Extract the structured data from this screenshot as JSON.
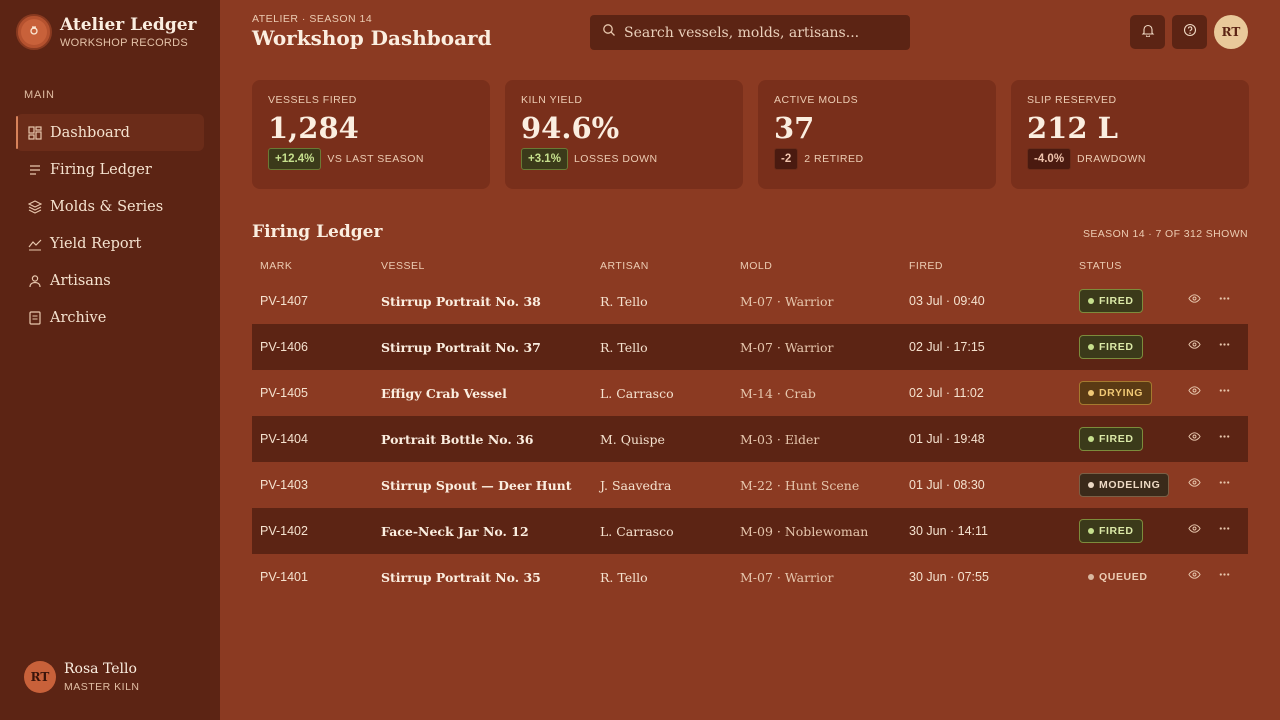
{
  "brand": {
    "title": "Atelier Ledger",
    "subtitle": "WORKSHOP RECORDS"
  },
  "sidebar": {
    "section_label": "MAIN",
    "items": [
      {
        "label": "Dashboard",
        "icon": "grid-icon",
        "active": true
      },
      {
        "label": "Firing Ledger",
        "icon": "list-icon"
      },
      {
        "label": "Molds & Series",
        "icon": "layers-icon"
      },
      {
        "label": "Yield Report",
        "icon": "trend-icon"
      },
      {
        "label": "Artisans",
        "icon": "person-icon"
      },
      {
        "label": "Archive",
        "icon": "archive-icon"
      }
    ],
    "user": {
      "initials": "RT",
      "name": "Rosa Tello",
      "role": "MASTER KILN"
    }
  },
  "header": {
    "eyebrow": "ATELIER · SEASON 14",
    "title": "Workshop Dashboard",
    "search_placeholder": "Search vessels, molds, artisans...",
    "avatar_initials": "RT"
  },
  "stats": [
    {
      "label": "VESSELS FIRED",
      "value": "1,284",
      "delta": "+12.4%",
      "tone": "pos",
      "note": "VS LAST SEASON"
    },
    {
      "label": "KILN YIELD",
      "value": "94.6%",
      "delta": "+3.1%",
      "tone": "pos",
      "note": "LOSSES DOWN"
    },
    {
      "label": "ACTIVE MOLDS",
      "value": "37",
      "delta": "-2",
      "tone": "neg",
      "note": "2 RETIRED"
    },
    {
      "label": "SLIP RESERVED",
      "value": "212 L",
      "delta": "-4.0%",
      "tone": "neg",
      "note": "DRAWDOWN"
    }
  ],
  "ledger": {
    "title": "Firing Ledger",
    "meta": "SEASON 14 · 7 OF 312 SHOWN",
    "columns": {
      "mark": "MARK",
      "vessel": "VESSEL",
      "artisan": "ARTISAN",
      "mold": "MOLD",
      "fired": "FIRED",
      "status": "STATUS"
    },
    "rows": [
      {
        "mark": "PV-1407",
        "vessel": "Stirrup Portrait No. 38",
        "artisan": "R. Tello",
        "mold": "M-07 · Warrior",
        "fired": "03 Jul · 09:40",
        "status": "FIRED",
        "status_kind": "fired"
      },
      {
        "mark": "PV-1406",
        "vessel": "Stirrup Portrait No. 37",
        "artisan": "R. Tello",
        "mold": "M-07 · Warrior",
        "fired": "02 Jul · 17:15",
        "status": "FIRED",
        "status_kind": "fired"
      },
      {
        "mark": "PV-1405",
        "vessel": "Effigy Crab Vessel",
        "artisan": "L. Carrasco",
        "mold": "M-14 · Crab",
        "fired": "02 Jul · 11:02",
        "status": "DRYING",
        "status_kind": "drying"
      },
      {
        "mark": "PV-1404",
        "vessel": "Portrait Bottle No. 36",
        "artisan": "M. Quispe",
        "mold": "M-03 · Elder",
        "fired": "01 Jul · 19:48",
        "status": "FIRED",
        "status_kind": "fired"
      },
      {
        "mark": "PV-1403",
        "vessel": "Stirrup Spout — Deer Hunt",
        "artisan": "J. Saavedra",
        "mold": "M-22 · Hunt Scene",
        "fired": "01 Jul · 08:30",
        "status": "MODELING",
        "status_kind": "modeling"
      },
      {
        "mark": "PV-1402",
        "vessel": "Face-Neck Jar No. 12",
        "artisan": "L. Carrasco",
        "mold": "M-09 · Noblewoman",
        "fired": "30 Jun · 14:11",
        "status": "FIRED",
        "status_kind": "fired"
      },
      {
        "mark": "PV-1401",
        "vessel": "Stirrup Portrait No. 35",
        "artisan": "R. Tello",
        "mold": "M-07 · Warrior",
        "fired": "30 Jun · 07:55",
        "status": "QUEUED",
        "status_kind": "queued"
      }
    ]
  }
}
